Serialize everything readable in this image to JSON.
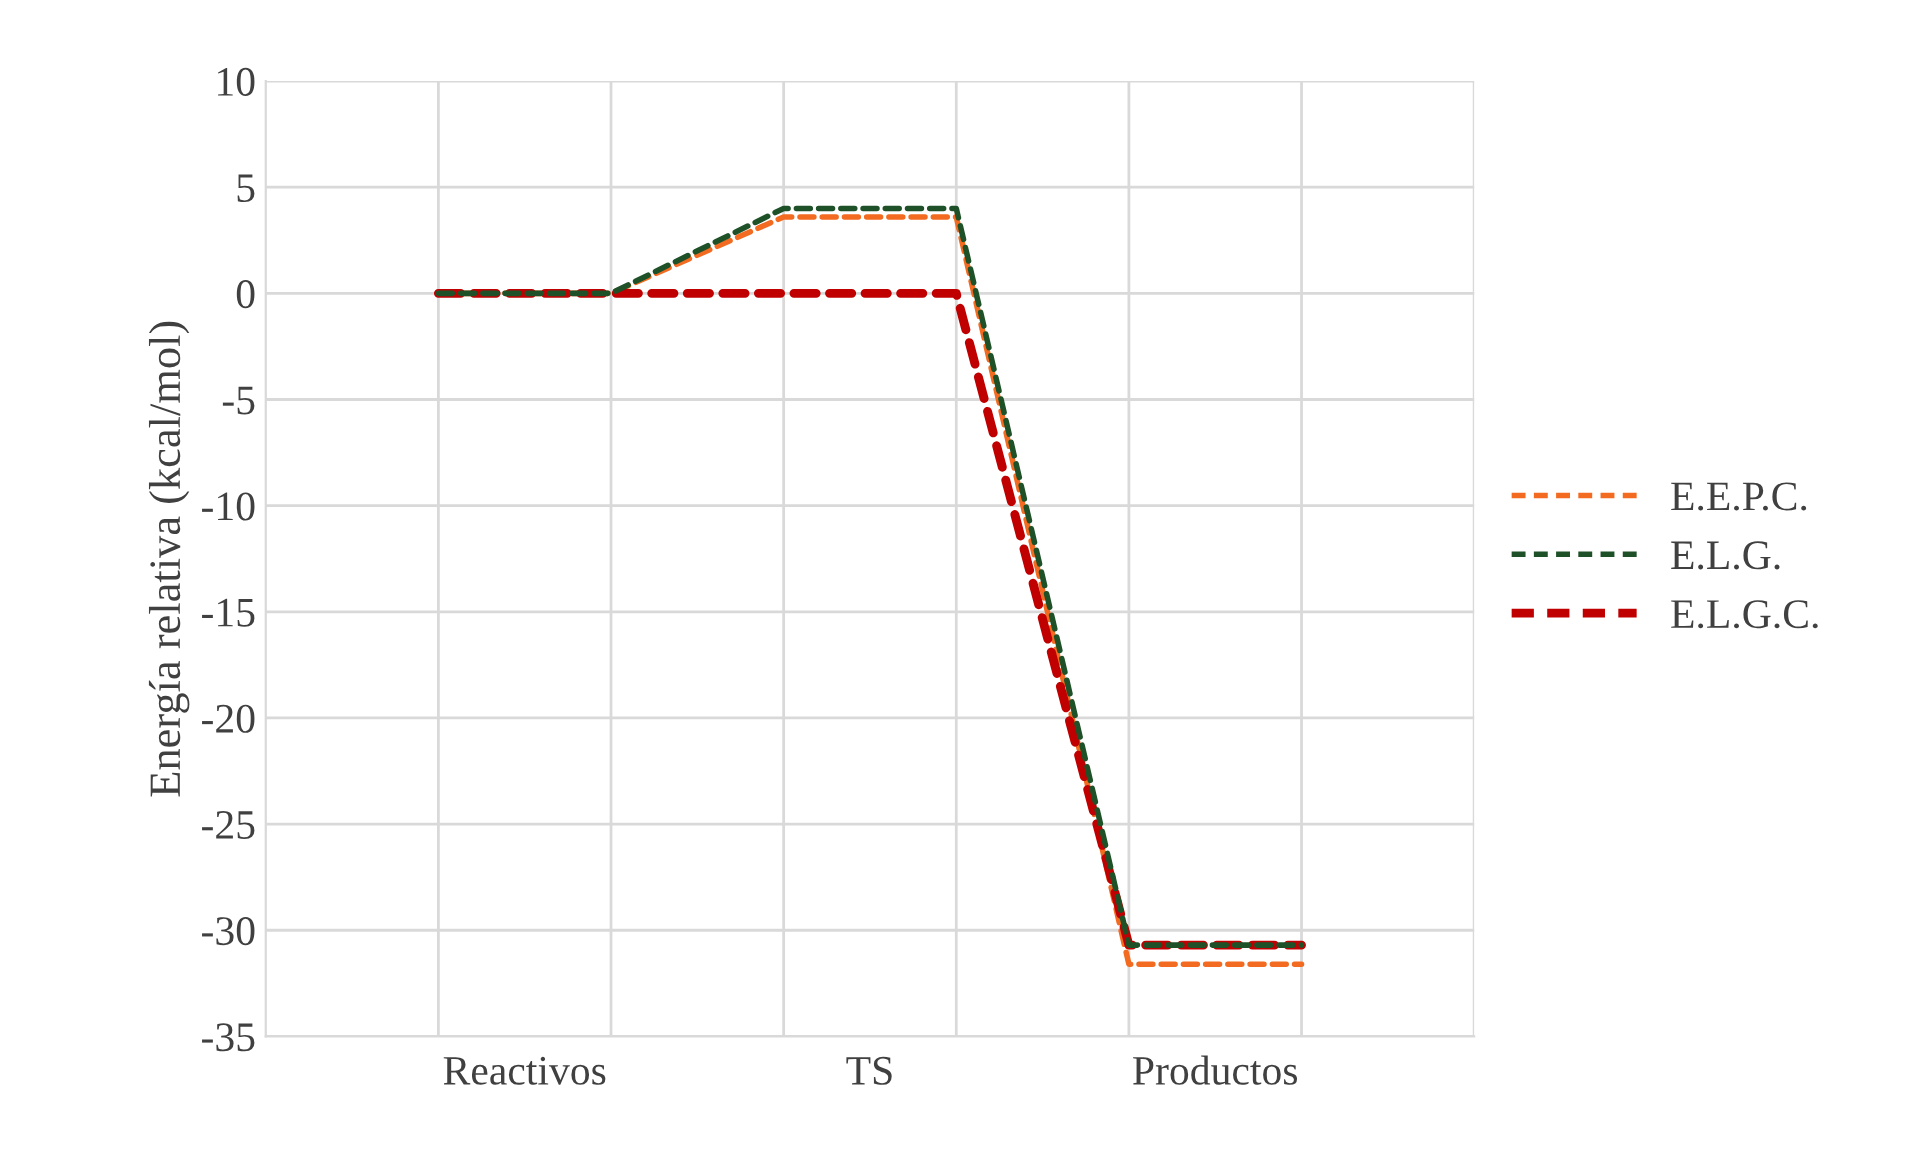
{
  "chart_data": {
    "type": "line",
    "ylabel": "Energía relativa (kcal/mol)",
    "categories": [
      null,
      null,
      null,
      null,
      null,
      null
    ],
    "annotations": [
      "Reactivos",
      "TS",
      "Productos"
    ],
    "ylim": [
      -35,
      10
    ],
    "yticks": [
      -35,
      -30,
      -25,
      -20,
      -15,
      -10,
      -5,
      0,
      5,
      10
    ],
    "grid": true,
    "legend": "right",
    "line_style": "dashed",
    "marker": "none",
    "series": [
      {
        "name": "E.E.P.C.",
        "color": "#f26b21",
        "values": [
          0,
          0,
          3.6,
          3.6,
          -31.6,
          -31.6
        ]
      },
      {
        "name": "E.L.G.",
        "color": "#1e5128",
        "values": [
          0,
          0,
          4.0,
          4.0,
          -30.7,
          -30.7
        ]
      },
      {
        "name": "E.L.G.C.",
        "color": "#c00000",
        "values": [
          0,
          0,
          0,
          0,
          -30.7,
          -30.7
        ]
      }
    ]
  }
}
